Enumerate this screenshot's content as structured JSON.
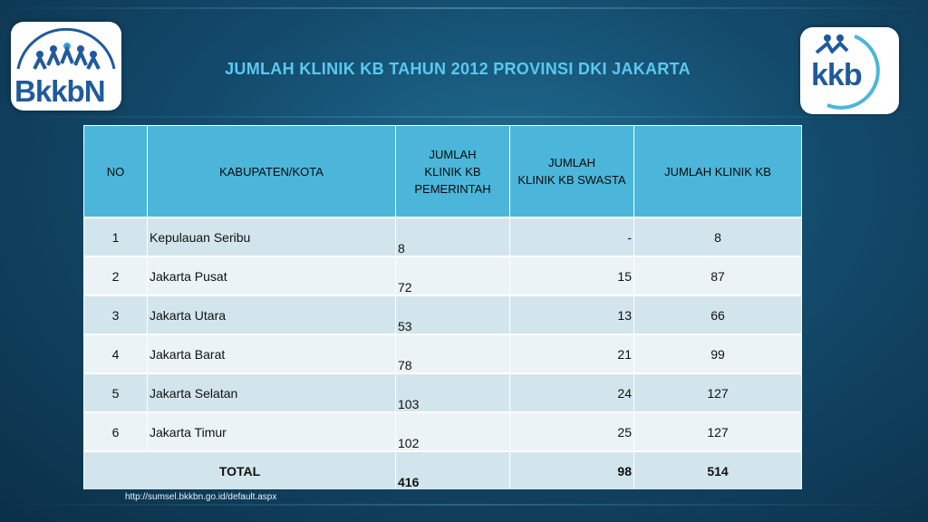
{
  "logos": {
    "left_text": "BkkbN",
    "right_text": "kkb"
  },
  "title": "JUMLAH KLINIK KB TAHUN 2012 PROVINSI DKI JAKARTA",
  "table": {
    "headers": {
      "no": "NO",
      "city": "KABUPATEN/KOTA",
      "gov_line1": "JUMLAH",
      "gov_line2": "KLINIK KB",
      "gov_line3": "PEMERINTAH",
      "swasta_line1": "JUMLAH",
      "swasta_line2": "KLINIK KB SWASTA",
      "total": "JUMLAH KLINIK KB"
    },
    "rows": [
      {
        "no": "1",
        "city": "Kepulauan Seribu",
        "gov": "8",
        "swasta": "-",
        "total": "8"
      },
      {
        "no": "2",
        "city": "Jakarta Pusat",
        "gov": "72",
        "swasta": "15",
        "total": "87"
      },
      {
        "no": "3",
        "city": "Jakarta Utara",
        "gov": "53",
        "swasta": "13",
        "total": "66"
      },
      {
        "no": "4",
        "city": "Jakarta Barat",
        "gov": "78",
        "swasta": "21",
        "total": "99"
      },
      {
        "no": "5",
        "city": "Jakarta Selatan",
        "gov": "103",
        "swasta": "24",
        "total": "127"
      },
      {
        "no": "6",
        "city": "Jakarta Timur",
        "gov": "102",
        "swasta": "25",
        "total": "127"
      }
    ],
    "total_row": {
      "label": "TOTAL",
      "gov": "416",
      "swasta": "98",
      "total": "514"
    }
  },
  "footer": "http://sumsel.bkkbn.go.id/default.aspx",
  "colors": {
    "header_bg": "#4bb6d9",
    "title": "#5cc8f0",
    "logo_blue": "#1f5a9c"
  }
}
